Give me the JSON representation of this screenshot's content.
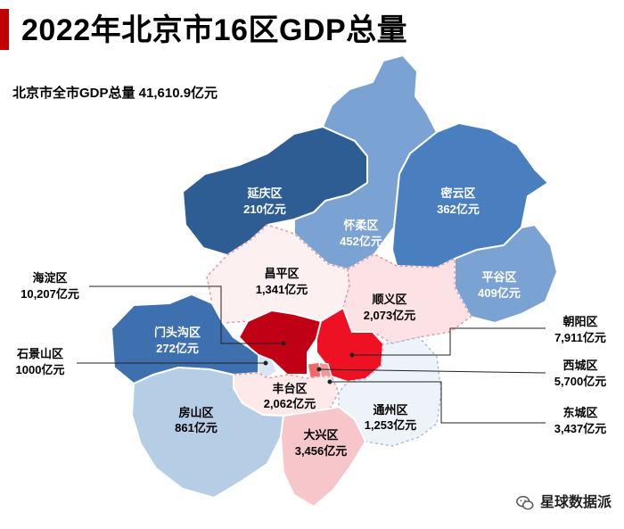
{
  "title": "2022年北京市16区GDP总量",
  "subtitle": "北京市全市GDP总量 41,610.9亿元",
  "watermark": "星球数据派",
  "colors": {
    "title_bar": "#c00000",
    "dark_blue": "#2e5d93",
    "mid_blue": "#4a7fbf",
    "light_blue": "#7aa3d3",
    "pale_blue": "#b6cde6",
    "very_pale_blue": "#e8eff7",
    "pale_pink": "#fde8ea",
    "pink": "#f6c6cb",
    "light_red": "#f06a6a",
    "red": "#e60012",
    "dark_red": "#b80012"
  },
  "districts": {
    "yanqing": {
      "name": "延庆区",
      "value": "210亿元"
    },
    "miyun": {
      "name": "密云区",
      "value": "362亿元"
    },
    "huairou": {
      "name": "怀柔区",
      "value": "452亿元"
    },
    "pinggu": {
      "name": "平谷区",
      "value": "409亿元"
    },
    "changping": {
      "name": "昌平区",
      "value": "1,341亿元"
    },
    "shunyi": {
      "name": "顺义区",
      "value": "2,073亿元"
    },
    "mentougou": {
      "name": "门头沟区",
      "value": "272亿元"
    },
    "fangshan": {
      "name": "房山区",
      "value": "861亿元"
    },
    "fengtai": {
      "name": "丰台区",
      "value": "2,062亿元"
    },
    "tongzhou": {
      "name": "通州区",
      "value": "1,253亿元"
    },
    "daxing": {
      "name": "大兴区",
      "value": "3,456亿元"
    },
    "haidian": {
      "name": "海淀区",
      "value": "10,207亿元"
    },
    "shijingshan": {
      "name": "石景山区",
      "value": "1000亿元"
    },
    "chaoyang": {
      "name": "朝阳区",
      "value": "7,911亿元"
    },
    "xicheng": {
      "name": "西城区",
      "value": "5,700亿元"
    },
    "dongcheng": {
      "name": "东城区",
      "value": "3,437亿元"
    }
  }
}
